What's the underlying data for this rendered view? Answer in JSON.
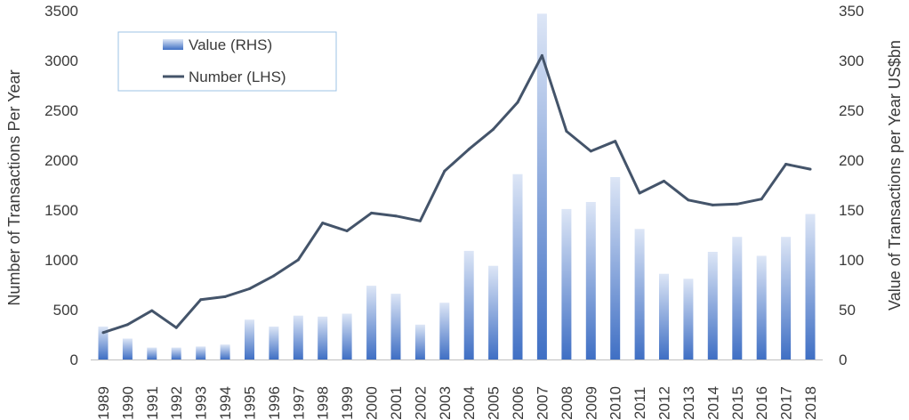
{
  "chart_data": {
    "type": "bar",
    "title": "",
    "categories": [
      "1989",
      "1990",
      "1991",
      "1992",
      "1993",
      "1994",
      "1995",
      "1996",
      "1997",
      "1998",
      "1999",
      "2000",
      "2001",
      "2002",
      "2003",
      "2004",
      "2005",
      "2006",
      "2007",
      "2008",
      "2009",
      "2010",
      "2011",
      "2012",
      "2013",
      "2014",
      "2015",
      "2016",
      "2017",
      "2018"
    ],
    "series": [
      {
        "name": "Value (RHS)",
        "type": "bar",
        "axis": "right",
        "values": [
          33,
          21,
          12,
          12,
          13,
          15,
          40,
          33,
          44,
          43,
          46,
          74,
          66,
          35,
          57,
          109,
          94,
          186,
          347,
          151,
          158,
          183,
          131,
          86,
          81,
          108,
          123,
          104,
          123,
          146
        ]
      },
      {
        "name": "Number (LHS)",
        "type": "line",
        "axis": "left",
        "values": [
          270,
          350,
          490,
          320,
          600,
          630,
          710,
          840,
          1000,
          1370,
          1290,
          1470,
          1440,
          1390,
          1890,
          2110,
          2310,
          2580,
          3050,
          2290,
          2090,
          2190,
          1670,
          1790,
          1600,
          1550,
          1560,
          1610,
          1960,
          1910
        ]
      }
    ],
    "ylabel": "Number of Transactions Per Year",
    "ylabel_right": "Value of Transactions per Year US$bn",
    "xlabel": "",
    "ylim": [
      0,
      3500
    ],
    "ylim_right": [
      0,
      350
    ],
    "yticks": [
      "0",
      "500",
      "1000",
      "1500",
      "2000",
      "2500",
      "3000",
      "3500"
    ],
    "yticks_right": [
      "0",
      "50",
      "100",
      "150",
      "200",
      "250",
      "300",
      "350"
    ],
    "grid": false,
    "legend_position": "top-left"
  },
  "colors": {
    "bar_top": "#dde6f6",
    "bar_bottom": "#3f6fc4",
    "line": "#44546a",
    "axis": "#bfbfbf",
    "text": "#3a3a3a",
    "legend_border": "#9dc3e6"
  }
}
